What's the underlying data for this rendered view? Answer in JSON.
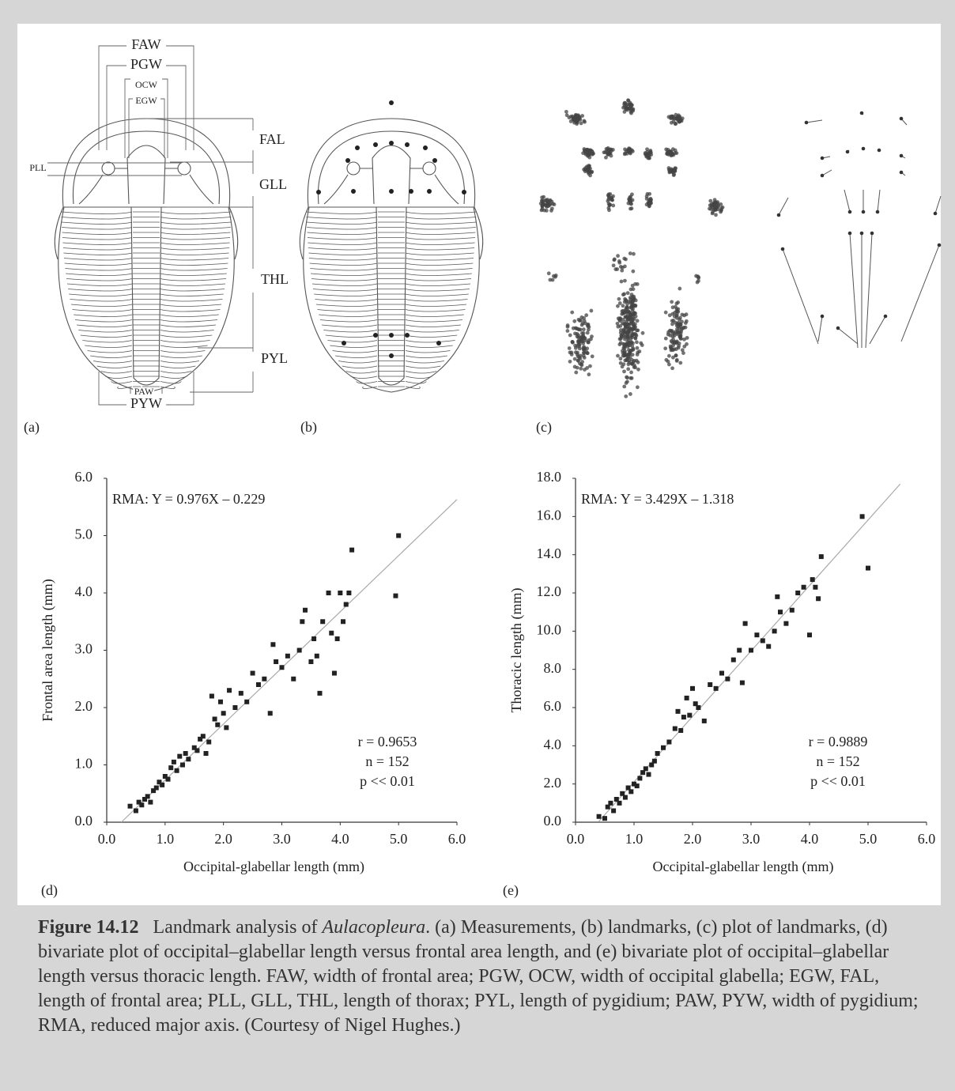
{
  "figure": {
    "panel_labels": [
      "(a)",
      "(b)",
      "(c)",
      "(d)",
      "(e)"
    ],
    "measurement_labels": [
      "FAW",
      "PGW",
      "OCW",
      "EGW",
      "FAL",
      "PLL",
      "GLL",
      "THL",
      "PYL",
      "PAW",
      "PYW"
    ]
  },
  "chart_data": [
    {
      "type": "scatter",
      "annotation": "RMA: Y = 0.976X – 0.229",
      "stats": [
        "r = 0.9653",
        "n = 152",
        "p << 0.01"
      ],
      "x_label": "Occipital-glabellar length (mm)",
      "y_label": "Frontal area length (mm)",
      "color": "#222222",
      "fit_color": "#aaaaaa",
      "xlim": [
        0,
        6
      ],
      "ylim": [
        0,
        6
      ],
      "xticks": [
        {
          "value": 0,
          "label": "0.0"
        },
        {
          "value": 1,
          "label": "1.0"
        },
        {
          "value": 2,
          "label": "2.0"
        },
        {
          "value": 3,
          "label": "3.0"
        },
        {
          "value": 4,
          "label": "4.0"
        },
        {
          "value": 5,
          "label": "5.0"
        },
        {
          "value": 6,
          "label": "6.0"
        }
      ],
      "yticks": [
        {
          "value": 0,
          "label": "0.0"
        },
        {
          "value": 1,
          "label": "1.0"
        },
        {
          "value": 2,
          "label": "2.0"
        },
        {
          "value": 3,
          "label": "3.0"
        },
        {
          "value": 4,
          "label": "4.0"
        },
        {
          "value": 5,
          "label": "5.0"
        },
        {
          "value": 6,
          "label": "6.0"
        }
      ],
      "x": [
        0.4,
        0.5,
        0.55,
        0.6,
        0.65,
        0.7,
        0.75,
        0.8,
        0.85,
        0.9,
        0.95,
        1.0,
        1.05,
        1.1,
        1.15,
        1.2,
        1.25,
        1.3,
        1.35,
        1.4,
        1.5,
        1.55,
        1.6,
        1.65,
        1.7,
        1.75,
        1.8,
        1.85,
        1.9,
        1.95,
        2.0,
        2.05,
        2.1,
        2.2,
        2.3,
        2.4,
        2.5,
        2.6,
        2.7,
        2.8,
        2.85,
        2.9,
        3.0,
        3.1,
        3.2,
        3.3,
        3.35,
        3.4,
        3.5,
        3.55,
        3.6,
        3.65,
        3.7,
        3.8,
        3.85,
        3.9,
        3.95,
        4.0,
        4.05,
        4.1,
        4.15,
        4.2,
        4.95,
        5.0
      ],
      "y": [
        0.28,
        0.2,
        0.35,
        0.3,
        0.4,
        0.45,
        0.35,
        0.55,
        0.6,
        0.7,
        0.65,
        0.8,
        0.75,
        0.95,
        1.05,
        0.9,
        1.15,
        1.0,
        1.2,
        1.1,
        1.3,
        1.25,
        1.45,
        1.5,
        1.2,
        1.4,
        2.2,
        1.8,
        1.7,
        2.1,
        1.9,
        1.65,
        2.3,
        2.0,
        2.25,
        2.1,
        2.6,
        2.4,
        2.5,
        1.9,
        3.1,
        2.8,
        2.7,
        2.9,
        2.5,
        3.0,
        3.5,
        3.7,
        2.8,
        3.2,
        2.9,
        2.25,
        3.5,
        4.0,
        3.3,
        2.6,
        3.2,
        4.0,
        3.5,
        3.8,
        4.0,
        4.75,
        3.95,
        5.0
      ],
      "fit_line": {
        "x": [
          0.25,
          6.0
        ],
        "y": [
          0.0,
          5.63
        ]
      }
    },
    {
      "type": "scatter",
      "annotation": "RMA: Y = 3.429X – 1.318",
      "stats": [
        "r = 0.9889",
        "n = 152",
        "p << 0.01"
      ],
      "x_label": "Occipital-glabellar length (mm)",
      "y_label": "Thoracic length (mm)",
      "color": "#222222",
      "fit_color": "#aaaaaa",
      "xlim": [
        0,
        6
      ],
      "ylim": [
        0,
        18
      ],
      "xticks": [
        {
          "value": 0,
          "label": "0.0"
        },
        {
          "value": 1,
          "label": "1.0"
        },
        {
          "value": 2,
          "label": "2.0"
        },
        {
          "value": 3,
          "label": "3.0"
        },
        {
          "value": 4,
          "label": "4.0"
        },
        {
          "value": 5,
          "label": "5.0"
        },
        {
          "value": 6,
          "label": "6.0"
        }
      ],
      "yticks": [
        {
          "value": 0,
          "label": "0.0"
        },
        {
          "value": 2,
          "label": "2.0"
        },
        {
          "value": 4,
          "label": "4.0"
        },
        {
          "value": 6,
          "label": "6.0"
        },
        {
          "value": 8,
          "label": "8.0"
        },
        {
          "value": 10,
          "label": "10.0"
        },
        {
          "value": 12,
          "label": "12.0"
        },
        {
          "value": 14,
          "label": "14.0"
        },
        {
          "value": 16,
          "label": "16.0"
        },
        {
          "value": 18,
          "label": "18.0"
        }
      ],
      "x": [
        0.4,
        0.5,
        0.55,
        0.6,
        0.65,
        0.7,
        0.75,
        0.8,
        0.85,
        0.9,
        0.95,
        1.0,
        1.05,
        1.1,
        1.15,
        1.2,
        1.25,
        1.3,
        1.35,
        1.4,
        1.5,
        1.6,
        1.7,
        1.75,
        1.8,
        1.85,
        1.9,
        1.95,
        2.0,
        2.05,
        2.1,
        2.2,
        2.3,
        2.4,
        2.5,
        2.6,
        2.7,
        2.8,
        2.85,
        2.9,
        3.0,
        3.1,
        3.2,
        3.3,
        3.4,
        3.45,
        3.5,
        3.6,
        3.7,
        3.8,
        3.9,
        4.0,
        4.05,
        4.1,
        4.15,
        4.2,
        4.9,
        5.0
      ],
      "y": [
        0.3,
        0.2,
        0.8,
        1.0,
        0.6,
        1.2,
        1.0,
        1.5,
        1.3,
        1.8,
        1.6,
        2.0,
        1.9,
        2.3,
        2.6,
        2.8,
        2.5,
        3.0,
        3.2,
        3.6,
        3.9,
        4.2,
        4.9,
        5.8,
        4.8,
        5.5,
        6.5,
        5.6,
        7.0,
        6.2,
        6.0,
        5.3,
        7.2,
        7.0,
        7.8,
        7.5,
        8.5,
        9.0,
        7.3,
        10.4,
        9.0,
        9.8,
        9.5,
        9.2,
        10.0,
        11.8,
        11.0,
        10.4,
        11.1,
        12.0,
        12.3,
        9.8,
        12.7,
        12.3,
        11.7,
        13.9,
        16.0,
        13.3
      ],
      "fit_line": {
        "x": [
          0.4,
          5.55
        ],
        "y": [
          0.05,
          17.7
        ]
      }
    }
  ],
  "caption": {
    "label": "Figure 14.12",
    "text_before": "Landmark analysis of ",
    "italic": "Aulacopleura",
    "text_after": ". (a) Measurements, (b) landmarks, (c) plot of landmarks, (d) bivariate plot of occipital–glabellar length versus frontal area length, and (e) bivariate plot of occipital–glabellar length versus thoracic length. FAW, width of frontal area; PGW, OCW, width of occipital glabella; EGW, FAL, length of frontal area; PLL, GLL, THL, length of thorax; PYL, length of pygidium; PAW, PYW, width of pygidium; RMA, reduced major axis. (Courtesy of Nigel Hughes.)"
  }
}
